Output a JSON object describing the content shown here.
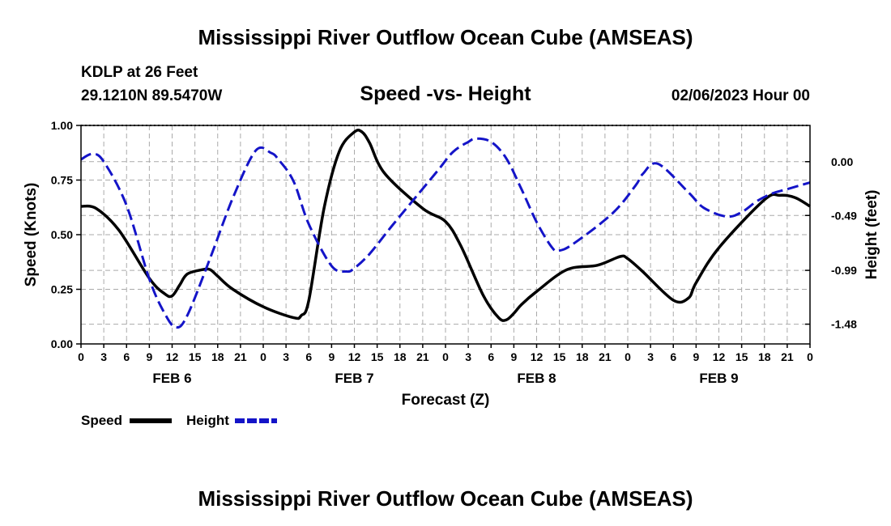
{
  "header": {
    "title": "Mississippi River Outflow Ocean Cube (AMSEAS)",
    "station": "KDLP at 26 Feet",
    "coords": "29.1210N  89.5470W",
    "plot_title": "Speed -vs- Height",
    "date": "02/06/2023 Hour 00",
    "footer_title": "Mississippi River Outflow Ocean Cube (AMSEAS)"
  },
  "colors": {
    "speed": "#000000",
    "height": "#1414c8",
    "grid": "#aaaaaa",
    "axis": "#000000"
  },
  "chart_data": {
    "type": "line",
    "title": "Speed -vs- Height",
    "xlabel": "Forecast (Z)",
    "ylabel": "Speed (Knots)",
    "y2label": "Height (feet)",
    "xlim": [
      0,
      96
    ],
    "ylim": [
      0,
      1.0
    ],
    "y2lim": [
      -1.66,
      0.33
    ],
    "grid": true,
    "x_ticks": [
      0,
      3,
      6,
      9,
      12,
      15,
      18,
      21,
      24,
      27,
      30,
      33,
      36,
      39,
      42,
      45,
      48,
      51,
      54,
      57,
      60,
      63,
      66,
      69,
      72,
      75,
      78,
      81,
      84,
      87,
      90,
      93,
      96
    ],
    "x_tick_labels": [
      "0",
      "3",
      "6",
      "9",
      "12",
      "15",
      "18",
      "21",
      "0",
      "3",
      "6",
      "9",
      "12",
      "15",
      "18",
      "21",
      "0",
      "3",
      "6",
      "9",
      "12",
      "15",
      "18",
      "21",
      "0",
      "3",
      "6",
      "9",
      "12",
      "15",
      "18",
      "21",
      "0"
    ],
    "day_labels": [
      {
        "label": "FEB 6",
        "x": 12
      },
      {
        "label": "FEB 7",
        "x": 36
      },
      {
        "label": "FEB 8",
        "x": 60
      },
      {
        "label": "FEB 9",
        "x": 84
      }
    ],
    "y_ticks": [
      0,
      0.25,
      0.5,
      0.75,
      1.0
    ],
    "y_tick_labels": [
      "0.00",
      "0.25",
      "0.50",
      "0.75",
      "1.00"
    ],
    "y2_ticks": [
      0.0,
      -0.49,
      -0.99,
      -1.48
    ],
    "y2_tick_labels": [
      "0.00",
      "-0.49",
      "-0.99",
      "-1.48"
    ],
    "series": [
      {
        "name": "Speed",
        "axis": "left",
        "style": "solid",
        "x": [
          0,
          2,
          5,
          9,
          11,
          12,
          13,
          14,
          16,
          17,
          18,
          20,
          24,
          28,
          29,
          30,
          32,
          34,
          36,
          37,
          38,
          40,
          45,
          48,
          50,
          53,
          55,
          56,
          57,
          58,
          60,
          64,
          68,
          71,
          72,
          74,
          78,
          80,
          81,
          84,
          90,
          92,
          94,
          96
        ],
        "values": [
          0.63,
          0.62,
          0.52,
          0.3,
          0.23,
          0.22,
          0.27,
          0.32,
          0.34,
          0.34,
          0.31,
          0.25,
          0.17,
          0.12,
          0.13,
          0.2,
          0.62,
          0.88,
          0.97,
          0.97,
          0.92,
          0.78,
          0.62,
          0.56,
          0.45,
          0.22,
          0.12,
          0.11,
          0.14,
          0.18,
          0.24,
          0.34,
          0.36,
          0.4,
          0.39,
          0.33,
          0.2,
          0.21,
          0.28,
          0.44,
          0.66,
          0.68,
          0.67,
          0.63
        ]
      },
      {
        "name": "Height",
        "axis": "right",
        "style": "dashed",
        "x": [
          0,
          1.5,
          3,
          6,
          9,
          11,
          12.5,
          14,
          17,
          20,
          23,
          25,
          26,
          28,
          30,
          33,
          35,
          36,
          38,
          41,
          44,
          47,
          49,
          51,
          52,
          54,
          56,
          58,
          60,
          62,
          63,
          65,
          70,
          73,
          74,
          76,
          80,
          82,
          85,
          87,
          89,
          91,
          93,
          96
        ],
        "values": [
          0.02,
          0.07,
          0.0,
          -0.4,
          -1.07,
          -1.38,
          -1.51,
          -1.4,
          -0.88,
          -0.33,
          0.1,
          0.08,
          0.02,
          -0.18,
          -0.57,
          -0.95,
          -1.0,
          -0.97,
          -0.84,
          -0.58,
          -0.33,
          -0.08,
          0.09,
          0.18,
          0.21,
          0.18,
          0.03,
          -0.25,
          -0.55,
          -0.78,
          -0.81,
          -0.74,
          -0.47,
          -0.22,
          -0.11,
          -0.02,
          -0.28,
          -0.42,
          -0.5,
          -0.46,
          -0.36,
          -0.29,
          -0.25,
          -0.19
        ]
      }
    ]
  }
}
